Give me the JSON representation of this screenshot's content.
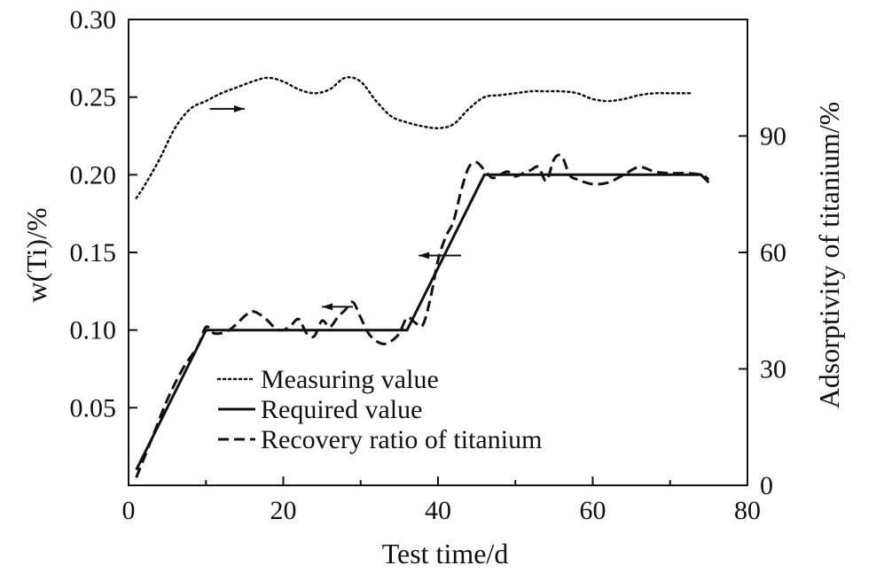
{
  "chart_data": {
    "type": "line",
    "xlabel": "Test time/d",
    "ylabel_left": "w(Ti)/%",
    "ylabel_right": "Adsorptivity of titanium/%",
    "xlim": [
      0,
      80
    ],
    "ylim_left": [
      0,
      0.3
    ],
    "ylim_right": [
      0,
      120
    ],
    "x_ticks": [
      "0",
      "20",
      "40",
      "60",
      "80"
    ],
    "y_ticks_left": [
      "0.05",
      "0.10",
      "0.15",
      "0.20",
      "0.25",
      "0.30"
    ],
    "y_ticks_right": [
      "0",
      "30",
      "60",
      "90"
    ],
    "legend": [
      {
        "label": "Measuring value",
        "style": "dotted"
      },
      {
        "label": "Required value",
        "style": "solid"
      },
      {
        "label": "Recovery ratio of titanium",
        "style": "dashed"
      }
    ],
    "series": [
      {
        "name": "Measuring value",
        "axis": "right",
        "style": "dotted",
        "x": [
          1,
          2,
          4,
          6,
          8,
          10,
          12,
          14,
          16,
          18,
          20,
          22,
          24,
          26,
          28,
          30,
          32,
          34,
          36,
          38,
          40,
          42,
          44,
          46,
          48,
          50,
          52,
          54,
          56,
          58,
          60,
          62,
          64,
          66,
          68,
          70,
          72,
          73
        ],
        "y": [
          74,
          77,
          84,
          92,
          97,
          99,
          101,
          102.5,
          104,
          105,
          104,
          102,
          101,
          102,
          105,
          104,
          99,
          95,
          93.5,
          92.5,
          92,
          93,
          97,
          100,
          100.5,
          101,
          101.5,
          101.5,
          101.5,
          101,
          99.5,
          99,
          99.5,
          100.5,
          101,
          101,
          101,
          101
        ]
      },
      {
        "name": "Required value",
        "axis": "left",
        "style": "solid",
        "x": [
          1,
          10,
          36,
          46,
          74,
          75
        ],
        "y": [
          0.01,
          0.1,
          0.1,
          0.2,
          0.2,
          0.195
        ]
      },
      {
        "name": "Recovery ratio of titanium",
        "axis": "left",
        "style": "dashed",
        "x": [
          1,
          3,
          5,
          7,
          9,
          10,
          11,
          12,
          13,
          14,
          15,
          16,
          17,
          18,
          19,
          20,
          21,
          22,
          23,
          24,
          25,
          26,
          27,
          28,
          29,
          30,
          31,
          32,
          33,
          34,
          35,
          36,
          37,
          38,
          39,
          40,
          41,
          42,
          43,
          44,
          45,
          46,
          47,
          48,
          49,
          50,
          51,
          52,
          53,
          54,
          55,
          56,
          57,
          58,
          60,
          62,
          64,
          66,
          68,
          70,
          72,
          74,
          75
        ],
        "y": [
          0.005,
          0.03,
          0.055,
          0.075,
          0.09,
          0.102,
          0.098,
          0.098,
          0.1,
          0.104,
          0.109,
          0.112,
          0.11,
          0.106,
          0.101,
          0.1,
          0.103,
          0.107,
          0.098,
          0.096,
          0.106,
          0.102,
          0.108,
          0.113,
          0.118,
          0.108,
          0.098,
          0.093,
          0.091,
          0.093,
          0.098,
          0.108,
          0.105,
          0.103,
          0.12,
          0.145,
          0.16,
          0.17,
          0.19,
          0.205,
          0.208,
          0.203,
          0.198,
          0.2,
          0.202,
          0.199,
          0.201,
          0.203,
          0.205,
          0.196,
          0.21,
          0.212,
          0.2,
          0.197,
          0.194,
          0.195,
          0.2,
          0.205,
          0.202,
          0.201,
          0.201,
          0.2,
          0.197
        ]
      }
    ],
    "annotations": [
      {
        "type": "arrow",
        "direction": "right",
        "axis": "right",
        "x_from": 10.5,
        "x_to": 15,
        "y": 97
      },
      {
        "type": "arrow",
        "direction": "left",
        "axis": "left",
        "x_from": 29,
        "x_to": 25,
        "y": 0.115
      },
      {
        "type": "arrow",
        "direction": "left",
        "axis": "left",
        "x_from": 43,
        "x_to": 37.5,
        "y": 0.148
      }
    ]
  }
}
